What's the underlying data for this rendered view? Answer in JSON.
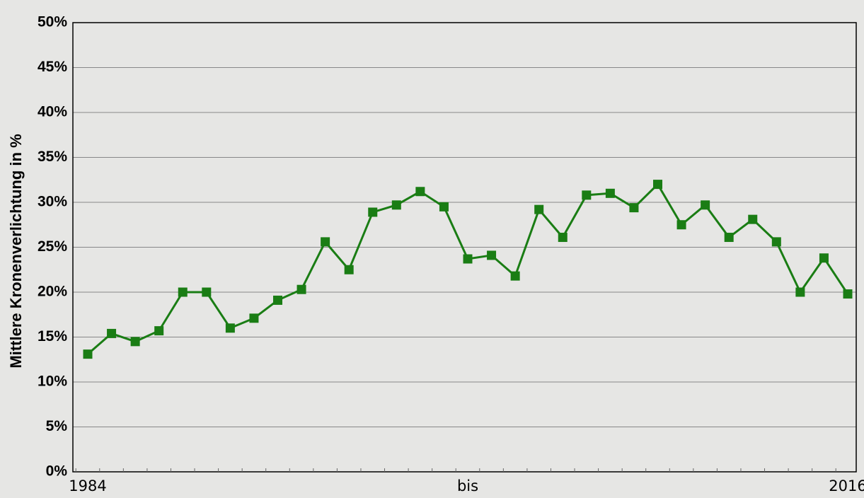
{
  "chart_data": {
    "type": "line",
    "y_label": "Mittlere Kronenverlichtung in %",
    "categories": [
      "1984",
      null,
      null,
      null,
      null,
      null,
      null,
      null,
      null,
      null,
      null,
      null,
      null,
      null,
      null,
      null,
      "bis",
      null,
      null,
      null,
      null,
      null,
      null,
      null,
      null,
      null,
      null,
      null,
      null,
      null,
      null,
      null,
      "2016"
    ],
    "series": [
      {
        "name": null,
        "color": "#1a7d14",
        "values": [
          13.1,
          15.4,
          14.5,
          15.7,
          20.0,
          20.0,
          16.0,
          17.1,
          19.1,
          20.3,
          25.6,
          22.5,
          28.9,
          29.7,
          31.2,
          29.5,
          23.7,
          24.1,
          21.8,
          29.2,
          26.1,
          30.8,
          31.0,
          29.4,
          32.0,
          27.5,
          29.7,
          26.1,
          28.1,
          25.6,
          20.0,
          23.8,
          19.8
        ]
      }
    ],
    "ylim": [
      0,
      50
    ],
    "yticks": [
      {
        "value": 0,
        "label": "0%"
      },
      {
        "value": 5,
        "label": "5%"
      },
      {
        "value": 10,
        "label": "10%"
      },
      {
        "value": 15,
        "label": "15%"
      },
      {
        "value": 20,
        "label": "20%"
      },
      {
        "value": 25,
        "label": "25%"
      },
      {
        "value": 30,
        "label": "30%"
      },
      {
        "value": 35,
        "label": "35%"
      },
      {
        "value": 40,
        "label": "40%"
      },
      {
        "value": 45,
        "label": "45%"
      },
      {
        "value": 50,
        "label": "50%"
      }
    ],
    "grid": true
  }
}
